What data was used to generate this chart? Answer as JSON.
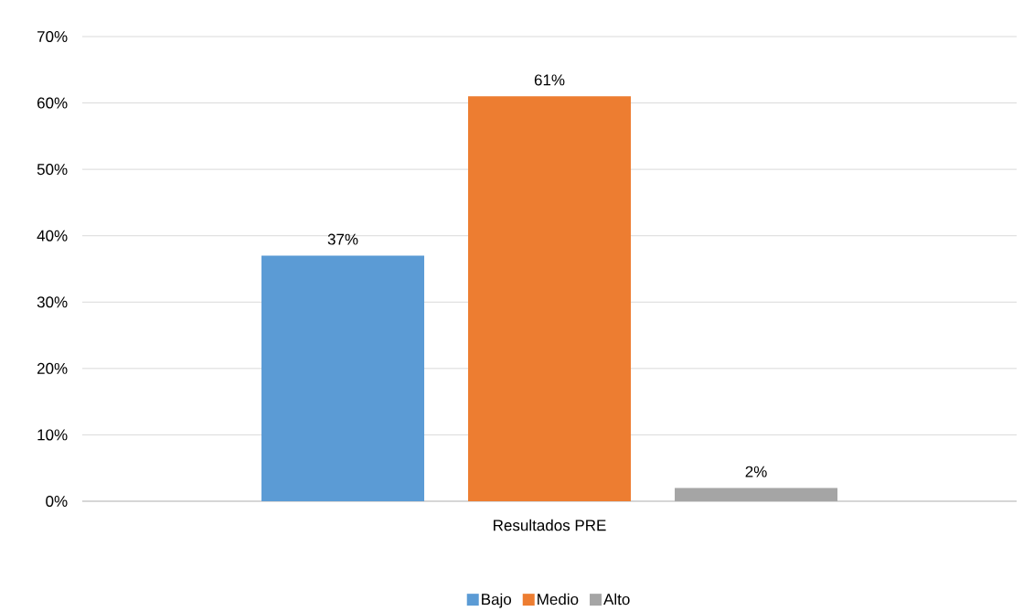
{
  "chart_data": {
    "type": "bar",
    "categories": [
      "Resultados PRE"
    ],
    "series": [
      {
        "name": "Bajo",
        "color": "#5b9bd5",
        "values": [
          37
        ],
        "value_labels": [
          "37%"
        ]
      },
      {
        "name": "Medio",
        "color": "#ed7d31",
        "values": [
          61
        ],
        "value_labels": [
          "61%"
        ]
      },
      {
        "name": "Alto",
        "color": "#a5a5a5",
        "values": [
          2
        ],
        "value_labels": [
          "2%"
        ]
      }
    ],
    "ylim": [
      0,
      70
    ],
    "yticks": [
      {
        "value": 0,
        "label": "0%"
      },
      {
        "value": 10,
        "label": "10%"
      },
      {
        "value": 20,
        "label": "20%"
      },
      {
        "value": 30,
        "label": "30%"
      },
      {
        "value": 40,
        "label": "40%"
      },
      {
        "value": 50,
        "label": "50%"
      },
      {
        "value": 60,
        "label": "60%"
      },
      {
        "value": 70,
        "label": "70%"
      }
    ],
    "grid": "y",
    "legend": "bottom"
  }
}
